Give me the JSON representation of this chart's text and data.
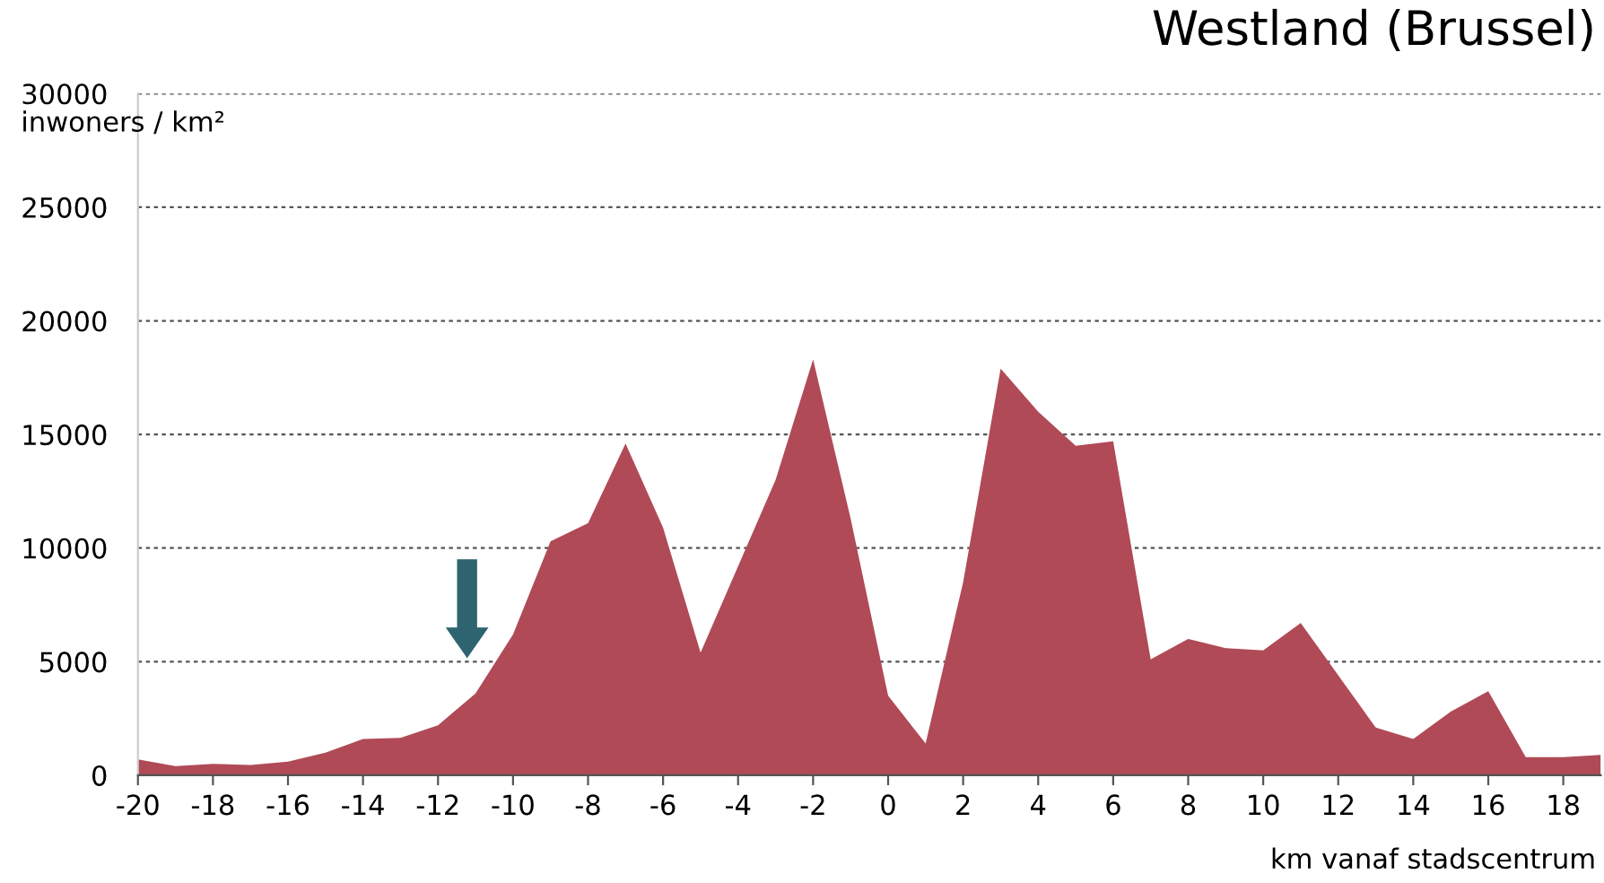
{
  "chart_data": {
    "type": "area",
    "title": "Westland (Brussel)",
    "xlabel": "km vanaf stadscentrum",
    "ylabel": "inwoners / km²",
    "x": [
      -20,
      -19,
      -18,
      -17,
      -16,
      -15,
      -14,
      -13,
      -12,
      -11,
      -10,
      -9,
      -8,
      -7,
      -6,
      -5,
      -4,
      -3,
      -2,
      -1,
      0,
      1,
      2,
      3,
      4,
      5,
      6,
      7,
      8,
      9,
      10,
      11,
      12,
      13,
      14,
      15,
      16,
      17,
      18,
      19
    ],
    "series": [
      {
        "color": "#b04a57",
        "values": [
          700,
          400,
          500,
          450,
          600,
          1000,
          1600,
          1650,
          2200,
          3600,
          6200,
          10300,
          11100,
          14600,
          10900,
          5400,
          9200,
          13000,
          18300,
          11300,
          3500,
          1400,
          8500,
          17900,
          16000,
          14500,
          14700,
          5100,
          6000,
          5600,
          5500,
          6700,
          4400,
          2100,
          1600,
          2800,
          3700,
          800,
          800,
          900
        ]
      }
    ],
    "xlim": [
      -20,
      19
    ],
    "ylim": [
      0,
      30000
    ],
    "xticks": [
      -20,
      -18,
      -16,
      -14,
      -12,
      -10,
      -8,
      -6,
      -4,
      -2,
      0,
      2,
      4,
      6,
      8,
      10,
      12,
      14,
      16,
      18
    ],
    "yticks": [
      0,
      5000,
      10000,
      15000,
      20000,
      25000,
      30000
    ],
    "grid": "y",
    "legend": false
  }
}
